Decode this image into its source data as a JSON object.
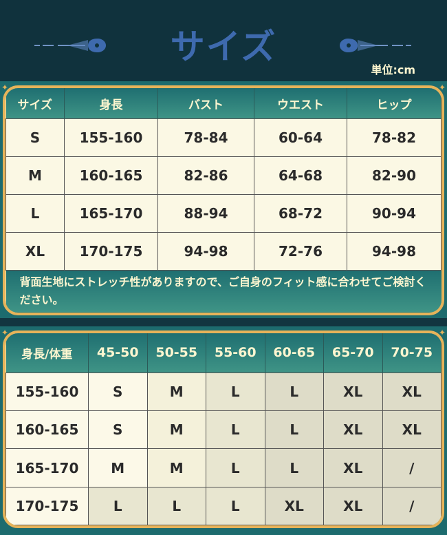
{
  "header": {
    "title": "サイズ",
    "unit": "単位:cm"
  },
  "size_table": {
    "columns": [
      "サイズ",
      "身長",
      "バスト",
      "ウエスト",
      "ヒップ"
    ],
    "rows": [
      [
        "S",
        "155-160",
        "78-84",
        "60-64",
        "78-82"
      ],
      [
        "M",
        "160-165",
        "82-86",
        "64-68",
        "82-90"
      ],
      [
        "L",
        "165-170",
        "88-94",
        "68-72",
        "90-94"
      ],
      [
        "XL",
        "170-175",
        "94-98",
        "72-76",
        "94-98"
      ]
    ],
    "note": "背面生地にストレッチ性がありますので、ご自身のフィット感に合わせてご検討ください。"
  },
  "weight_table": {
    "columns": [
      "身長/体重",
      "45-50",
      "50-55",
      "55-60",
      "60-65",
      "65-70",
      "70-75"
    ],
    "rows": [
      [
        "155-160",
        "S",
        "M",
        "L",
        "L",
        "XL",
        "XL"
      ],
      [
        "160-165",
        "S",
        "M",
        "L",
        "L",
        "XL",
        "XL"
      ],
      [
        "165-170",
        "M",
        "M",
        "L",
        "L",
        "XL",
        "/"
      ],
      [
        "170-175",
        "L",
        "L",
        "L",
        "XL",
        "XL",
        "/"
      ]
    ]
  },
  "colors": {
    "title": "#3e6aae",
    "frame": "#e6b35a",
    "header_bg": "#1f6f71",
    "background": "#10323d"
  }
}
